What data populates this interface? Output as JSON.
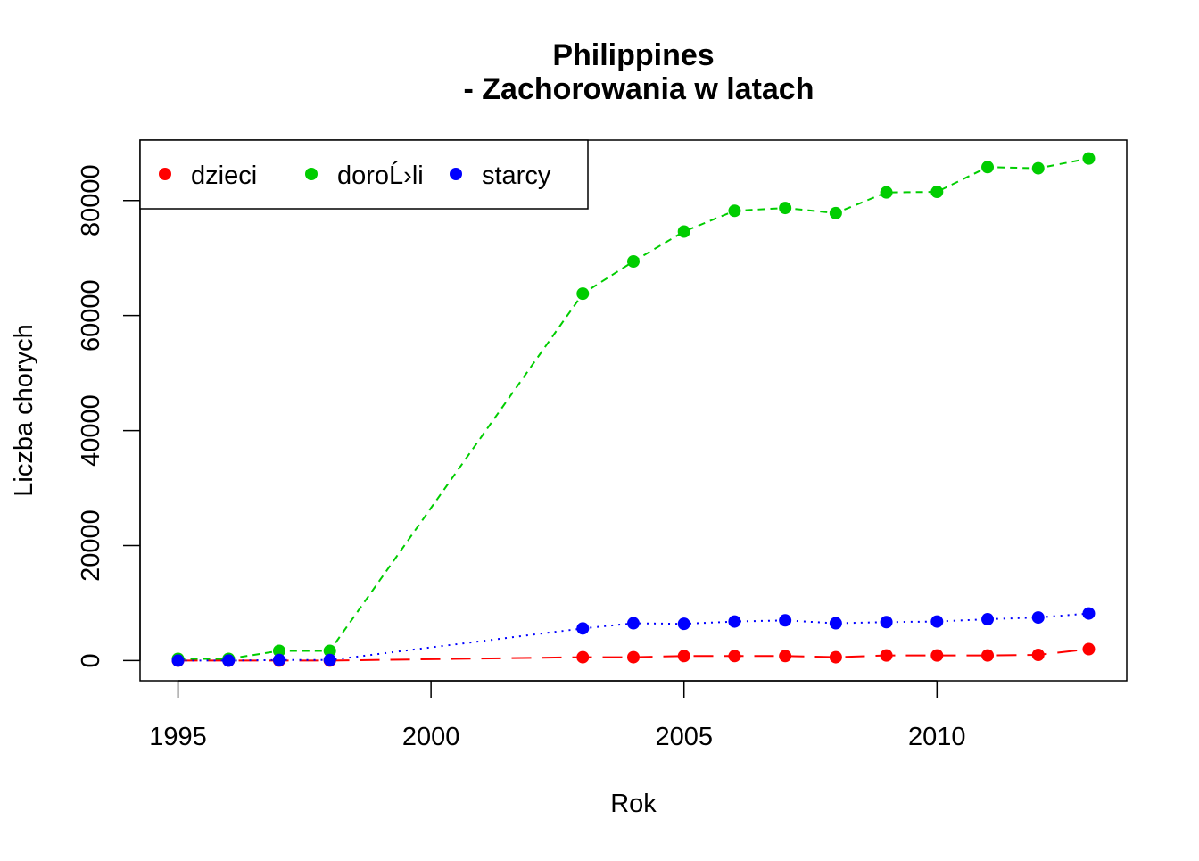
{
  "chart_data": {
    "type": "line",
    "title": "Philippines",
    "subtitle": "- Zachorowania w latach",
    "xlabel": "Rok",
    "ylabel": "Liczba chorych",
    "xlim": [
      1994.25,
      2013.75
    ],
    "ylim": [
      -3500,
      90500
    ],
    "xticks": [
      1995,
      2000,
      2005,
      2010
    ],
    "yticks": [
      0,
      20000,
      40000,
      60000,
      80000
    ],
    "grid": false,
    "legend_position": "top-left",
    "x": [
      1995,
      1996,
      1997,
      1998,
      2003,
      2004,
      2005,
      2006,
      2007,
      2008,
      2009,
      2010,
      2011,
      2012,
      2013
    ],
    "series": [
      {
        "name": "dzieci",
        "color": "#ff0000",
        "line_style": "dashed-long",
        "values": [
          0,
          0,
          0,
          0,
          600,
          600,
          800,
          800,
          800,
          600,
          900,
          900,
          900,
          1000,
          2000
        ]
      },
      {
        "name": "doroĹ›li",
        "color": "#00cd00",
        "line_style": "dashed",
        "values": [
          300,
          300,
          1700,
          1700,
          63800,
          69400,
          74600,
          78200,
          78700,
          77800,
          81400,
          81500,
          85800,
          85600,
          87300
        ]
      },
      {
        "name": "starcy",
        "color": "#0000ff",
        "line_style": "dotted",
        "values": [
          0,
          0,
          100,
          100,
          5600,
          6500,
          6400,
          6800,
          7000,
          6500,
          6700,
          6800,
          7200,
          7500,
          8200
        ]
      }
    ]
  }
}
